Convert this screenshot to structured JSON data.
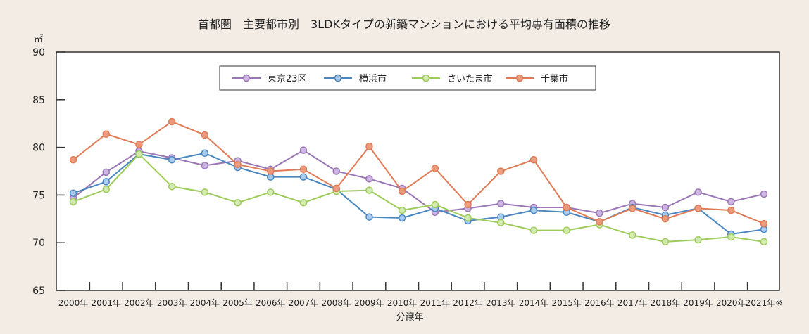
{
  "chart_data": {
    "type": "line",
    "title": "首都圏　主要都市別　3LDKタイプの新築マンションにおける平均専有面積の推移",
    "ylabel": "㎡",
    "xlabel": "分譲年",
    "ylim": [
      65,
      90
    ],
    "yticks": [
      "65",
      "70",
      "75",
      "80",
      "85",
      "90"
    ],
    "categories": [
      "2000年",
      "2001年",
      "2002年",
      "2003年",
      "2004年",
      "2005年",
      "2006年",
      "2007年",
      "2008年",
      "2009年",
      "2010年",
      "2011年",
      "2012年",
      "2013年",
      "2014年",
      "2015年",
      "2016年",
      "2017年",
      "2018年",
      "2019年",
      "2020年",
      "2021年※"
    ],
    "legend_position": "top",
    "grid": false,
    "series": [
      {
        "name": "東京23区",
        "color": "#9a76b5",
        "marker": "#cdb5e3",
        "values": [
          74.7,
          77.4,
          79.6,
          78.9,
          78.1,
          78.6,
          77.7,
          79.7,
          77.5,
          76.7,
          75.7,
          73.2,
          73.6,
          74.1,
          73.7,
          73.7,
          73.1,
          74.1,
          73.7,
          75.3,
          74.3,
          75.1
        ]
      },
      {
        "name": "横浜市",
        "color": "#4a86c0",
        "marker": "#a9cbee",
        "values": [
          75.2,
          76.4,
          79.3,
          78.7,
          79.4,
          77.9,
          76.9,
          76.9,
          75.6,
          72.7,
          72.6,
          73.6,
          72.3,
          72.7,
          73.4,
          73.2,
          72.2,
          73.7,
          72.9,
          73.6,
          70.9,
          71.4
        ]
      },
      {
        "name": "さいたま市",
        "color": "#9dcb5a",
        "marker": "#d3ebb0",
        "values": [
          74.3,
          75.6,
          79.3,
          75.9,
          75.3,
          74.2,
          75.3,
          74.2,
          75.4,
          75.5,
          73.4,
          74.0,
          72.6,
          72.1,
          71.3,
          71.3,
          71.9,
          70.8,
          70.1,
          70.3,
          70.6,
          70.1
        ]
      },
      {
        "name": "千葉市",
        "color": "#e07b55",
        "marker": "#eb9c7e",
        "values": [
          78.7,
          81.4,
          80.3,
          82.7,
          81.3,
          78.2,
          77.5,
          77.7,
          75.7,
          80.1,
          75.4,
          77.8,
          74.0,
          77.5,
          78.7,
          73.7,
          72.2,
          73.6,
          72.5,
          73.6,
          73.4,
          72.0
        ]
      }
    ]
  }
}
